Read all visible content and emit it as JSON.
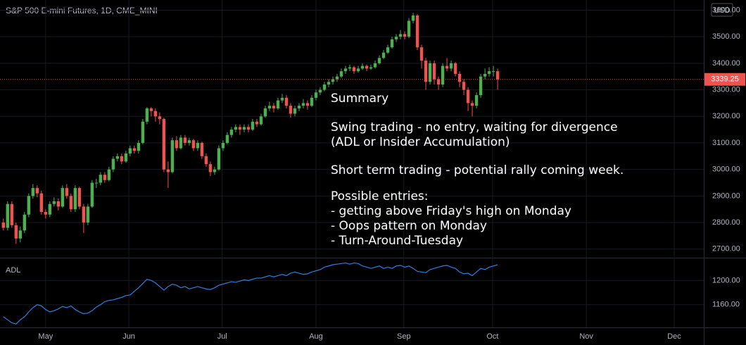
{
  "chart_data": [
    {
      "type": "candlestick",
      "title": "S&P 500 E-mini Futures, 1D, CME_MINI",
      "currency": "USD",
      "up_color": "#4caf50",
      "down_color": "#ef5350",
      "xlim": [
        -0.8,
        165.8
      ],
      "xticks": [
        {
          "value": 10,
          "label": "May"
        },
        {
          "value": 29.7,
          "label": "Jun"
        },
        {
          "value": 51.8,
          "label": "Jul"
        },
        {
          "value": 74,
          "label": "Aug"
        },
        {
          "value": 94.8,
          "label": "Sep"
        },
        {
          "value": 115.8,
          "label": "Oct"
        },
        {
          "value": 138,
          "label": "Nov"
        },
        {
          "value": 158.8,
          "label": "Dec"
        }
      ],
      "ylim": [
        2667.6,
        3638.3
      ],
      "yticks": [
        {
          "value": 2700,
          "label": "2700.00"
        },
        {
          "value": 2800,
          "label": "2800.00"
        },
        {
          "value": 2900,
          "label": "2900.00"
        },
        {
          "value": 3000,
          "label": "3000.00"
        },
        {
          "value": 3100,
          "label": "3100.00"
        },
        {
          "value": 3200,
          "label": "3200.00"
        },
        {
          "value": 3300,
          "label": "3300.00"
        },
        {
          "value": 3400,
          "label": "3400.00"
        },
        {
          "value": 3500,
          "label": "3500.00"
        },
        {
          "value": 3600,
          "label": "3600.00"
        }
      ],
      "candles": [
        [
          2800,
          2815,
          2770,
          2780
        ],
        [
          2780,
          2880,
          2770,
          2870
        ],
        [
          2870,
          2880,
          2780,
          2790
        ],
        [
          2790,
          2800,
          2720,
          2740
        ],
        [
          2740,
          2785,
          2725,
          2770
        ],
        [
          2770,
          2840,
          2760,
          2830
        ],
        [
          2830,
          2910,
          2820,
          2900
        ],
        [
          2900,
          2945,
          2890,
          2930
        ],
        [
          2930,
          2940,
          2895,
          2910
        ],
        [
          2910,
          2920,
          2830,
          2840
        ],
        [
          2840,
          2850,
          2815,
          2830
        ],
        [
          2830,
          2880,
          2820,
          2870
        ],
        [
          2870,
          2895,
          2860,
          2880
        ],
        [
          2880,
          2890,
          2845,
          2860
        ],
        [
          2860,
          2940,
          2855,
          2930
        ],
        [
          2930,
          2945,
          2890,
          2900
        ],
        [
          2900,
          2910,
          2840,
          2850
        ],
        [
          2850,
          2940,
          2840,
          2930
        ],
        [
          2930,
          2935,
          2850,
          2860
        ],
        [
          2860,
          2870,
          2760,
          2800
        ],
        [
          2800,
          2870,
          2790,
          2860
        ],
        [
          2860,
          2960,
          2855,
          2950
        ],
        [
          2950,
          2965,
          2930,
          2950
        ],
        [
          2950,
          2990,
          2940,
          2980
        ],
        [
          2980,
          2990,
          2950,
          2960
        ],
        [
          2960,
          3010,
          2955,
          3000
        ],
        [
          3000,
          3050,
          2990,
          3040
        ],
        [
          3040,
          3060,
          3030,
          3050
        ],
        [
          3050,
          3060,
          3020,
          3030
        ],
        [
          3030,
          3070,
          3025,
          3060
        ],
        [
          3060,
          3090,
          3050,
          3080
        ],
        [
          3080,
          3090,
          3060,
          3070
        ],
        [
          3070,
          3110,
          3060,
          3100
        ],
        [
          3100,
          3190,
          3095,
          3180
        ],
        [
          3180,
          3235,
          3170,
          3230
        ],
        [
          3230,
          3235,
          3200,
          3220
        ],
        [
          3220,
          3230,
          3180,
          3200
        ],
        [
          3200,
          3215,
          3170,
          3190
        ],
        [
          3190,
          3195,
          2990,
          3000
        ],
        [
          3000,
          3030,
          2930,
          2990
        ],
        [
          2990,
          3120,
          2985,
          3110
        ],
        [
          3110,
          3125,
          3070,
          3080
        ],
        [
          3080,
          3130,
          3075,
          3120
        ],
        [
          3120,
          3130,
          3090,
          3100
        ],
        [
          3100,
          3120,
          3090,
          3110
        ],
        [
          3110,
          3115,
          3070,
          3080
        ],
        [
          3080,
          3110,
          3070,
          3100
        ],
        [
          3100,
          3105,
          3040,
          3050
        ],
        [
          3050,
          3060,
          3010,
          3020
        ],
        [
          3020,
          3030,
          2975,
          2990
        ],
        [
          2990,
          3010,
          2980,
          3000
        ],
        [
          3000,
          3090,
          2995,
          3080
        ],
        [
          3080,
          3110,
          3070,
          3100
        ],
        [
          3100,
          3140,
          3095,
          3130
        ],
        [
          3130,
          3160,
          3120,
          3150
        ],
        [
          3150,
          3170,
          3140,
          3160
        ],
        [
          3160,
          3170,
          3130,
          3150
        ],
        [
          3150,
          3170,
          3140,
          3160
        ],
        [
          3160,
          3170,
          3140,
          3150
        ],
        [
          3150,
          3190,
          3145,
          3180
        ],
        [
          3180,
          3190,
          3160,
          3170
        ],
        [
          3170,
          3210,
          3165,
          3200
        ],
        [
          3200,
          3240,
          3195,
          3230
        ],
        [
          3230,
          3255,
          3220,
          3240
        ],
        [
          3240,
          3250,
          3215,
          3230
        ],
        [
          3230,
          3270,
          3225,
          3260
        ],
        [
          3260,
          3285,
          3250,
          3270
        ],
        [
          3270,
          3280,
          3230,
          3240
        ],
        [
          3240,
          3250,
          3195,
          3210
        ],
        [
          3210,
          3240,
          3200,
          3230
        ],
        [
          3230,
          3250,
          3220,
          3240
        ],
        [
          3240,
          3265,
          3230,
          3250
        ],
        [
          3250,
          3260,
          3225,
          3240
        ],
        [
          3240,
          3280,
          3235,
          3270
        ],
        [
          3270,
          3300,
          3260,
          3290
        ],
        [
          3290,
          3310,
          3280,
          3300
        ],
        [
          3300,
          3330,
          3295,
          3320
        ],
        [
          3320,
          3340,
          3310,
          3330
        ],
        [
          3330,
          3350,
          3320,
          3340
        ],
        [
          3340,
          3360,
          3330,
          3350
        ],
        [
          3350,
          3380,
          3345,
          3370
        ],
        [
          3370,
          3390,
          3360,
          3380
        ],
        [
          3380,
          3395,
          3370,
          3385
        ],
        [
          3385,
          3390,
          3360,
          3370
        ],
        [
          3370,
          3390,
          3365,
          3380
        ],
        [
          3380,
          3400,
          3375,
          3390
        ],
        [
          3390,
          3395,
          3370,
          3380
        ],
        [
          3380,
          3395,
          3375,
          3385
        ],
        [
          3385,
          3410,
          3380,
          3400
        ],
        [
          3400,
          3430,
          3395,
          3420
        ],
        [
          3420,
          3450,
          3415,
          3440
        ],
        [
          3440,
          3470,
          3435,
          3460
        ],
        [
          3460,
          3500,
          3455,
          3490
        ],
        [
          3490,
          3510,
          3480,
          3500
        ],
        [
          3500,
          3525,
          3490,
          3510
        ],
        [
          3510,
          3520,
          3490,
          3500
        ],
        [
          3500,
          3570,
          3495,
          3560
        ],
        [
          3560,
          3590,
          3550,
          3580
        ],
        [
          3580,
          3585,
          3450,
          3460
        ],
        [
          3460,
          3470,
          3380,
          3410
        ],
        [
          3410,
          3420,
          3300,
          3330
        ],
        [
          3330,
          3410,
          3320,
          3400
        ],
        [
          3400,
          3410,
          3320,
          3340
        ],
        [
          3340,
          3350,
          3300,
          3320
        ],
        [
          3320,
          3400,
          3310,
          3390
        ],
        [
          3390,
          3420,
          3370,
          3380
        ],
        [
          3380,
          3410,
          3370,
          3400
        ],
        [
          3400,
          3405,
          3350,
          3360
        ],
        [
          3360,
          3370,
          3310,
          3330
        ],
        [
          3330,
          3340,
          3280,
          3300
        ],
        [
          3300,
          3310,
          3220,
          3250
        ],
        [
          3250,
          3260,
          3200,
          3240
        ],
        [
          3240,
          3290,
          3230,
          3280
        ],
        [
          3280,
          3360,
          3270,
          3350
        ],
        [
          3350,
          3380,
          3340,
          3360
        ],
        [
          3360,
          3385,
          3350,
          3370
        ],
        [
          3370,
          3390,
          3350,
          3370
        ],
        [
          3370,
          3380,
          3300,
          3339.25
        ]
      ]
    },
    {
      "type": "line",
      "ylim": [
        1122.4,
        1236.5
      ],
      "yticks": [
        {
          "value": 1160,
          "label": "1160.00"
        },
        {
          "value": 1200,
          "label": "1200.00"
        }
      ],
      "series": [
        {
          "name": "ADL",
          "color": "#2f7fe0",
          "values": [
            1140,
            1135,
            1130,
            1128,
            1135,
            1140,
            1148,
            1155,
            1160,
            1158,
            1152,
            1148,
            1150,
            1153,
            1157,
            1155,
            1158,
            1152,
            1148,
            1145,
            1146,
            1150,
            1156,
            1160,
            1165,
            1167,
            1168,
            1170,
            1172,
            1175,
            1176,
            1182,
            1188,
            1195,
            1202,
            1200,
            1196,
            1190,
            1184,
            1190,
            1194,
            1192,
            1188,
            1190,
            1186,
            1188,
            1190,
            1188,
            1186,
            1185,
            1188,
            1192,
            1194,
            1196,
            1198,
            1197,
            1199,
            1201,
            1200,
            1202,
            1204,
            1204,
            1206,
            1208,
            1206,
            1208,
            1210,
            1208,
            1212,
            1214,
            1212,
            1210,
            1211,
            1214,
            1216,
            1218,
            1222,
            1224,
            1226,
            1227,
            1228,
            1229,
            1227,
            1229,
            1228,
            1224,
            1222,
            1220,
            1222,
            1224,
            1220,
            1222,
            1220,
            1224,
            1225,
            1222,
            1224,
            1220,
            1215,
            1214,
            1213,
            1218,
            1220,
            1222,
            1224,
            1225,
            1222,
            1220,
            1214,
            1211,
            1212,
            1208,
            1214,
            1220,
            1218,
            1222,
            1224,
            1226
          ]
        }
      ]
    }
  ],
  "annotation": {
    "title": "Summary",
    "lines": [
      "Swing trading - no entry, waiting for divergence",
      "(ADL or Insider Accumulation)",
      "Short term trading - potential rally coming week.",
      "Possible entries:",
      "- getting above Friday's high on Monday",
      "- Oops pattern on Monday",
      "- Turn-Around-Tuesday"
    ]
  }
}
